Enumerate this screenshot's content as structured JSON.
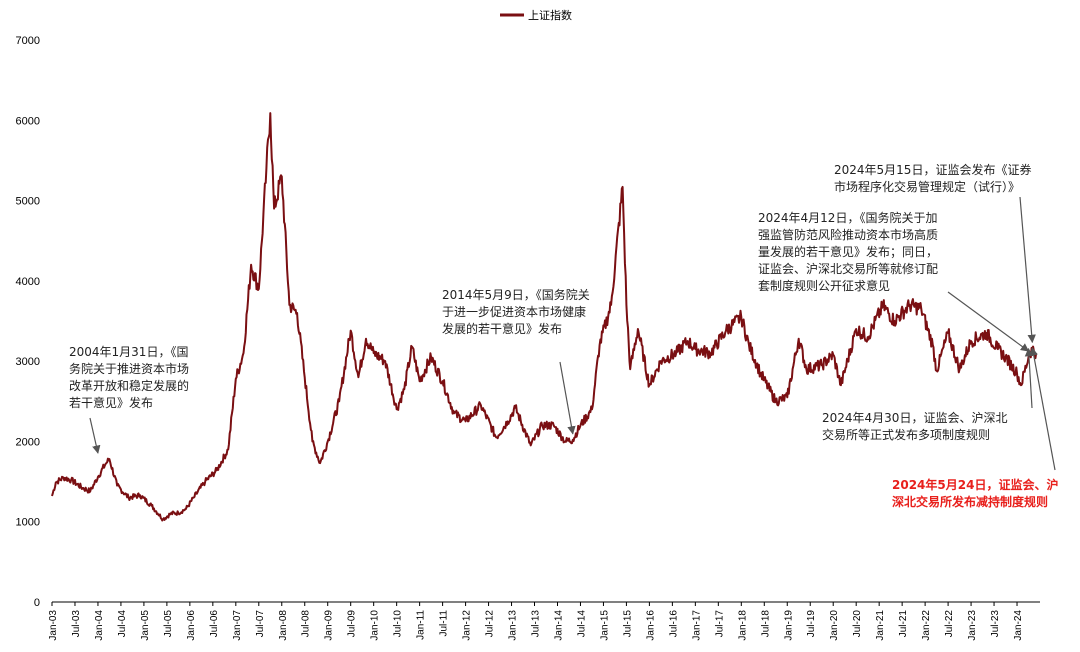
{
  "legend": {
    "label": "上证指数",
    "color": "#7a0f12"
  },
  "chart_data": {
    "type": "line",
    "series": [
      {
        "name": "上证指数",
        "color": "#7a0f12",
        "points": [
          [
            "2003-01",
            1320
          ],
          [
            "2003-02",
            1490
          ],
          [
            "2003-04",
            1550
          ],
          [
            "2003-06",
            1520
          ],
          [
            "2003-09",
            1420
          ],
          [
            "2003-11",
            1380
          ],
          [
            "2004-01",
            1560
          ],
          [
            "2004-03",
            1720
          ],
          [
            "2004-04",
            1780
          ],
          [
            "2004-06",
            1450
          ],
          [
            "2004-09",
            1300
          ],
          [
            "2004-12",
            1330
          ],
          [
            "2005-03",
            1200
          ],
          [
            "2005-06",
            1030
          ],
          [
            "2005-08",
            1100
          ],
          [
            "2005-10",
            1110
          ],
          [
            "2005-12",
            1160
          ],
          [
            "2006-02",
            1300
          ],
          [
            "2006-05",
            1500
          ],
          [
            "2006-08",
            1640
          ],
          [
            "2006-11",
            1900
          ],
          [
            "2007-01",
            2780
          ],
          [
            "2007-03",
            3100
          ],
          [
            "2007-05",
            4200
          ],
          [
            "2007-07",
            3900
          ],
          [
            "2007-09",
            5400
          ],
          [
            "2007-10",
            6090
          ],
          [
            "2007-11",
            4900
          ],
          [
            "2008-01",
            5300
          ],
          [
            "2008-03",
            3700
          ],
          [
            "2008-05",
            3600
          ],
          [
            "2008-07",
            2800
          ],
          [
            "2008-09",
            2000
          ],
          [
            "2008-11",
            1730
          ],
          [
            "2009-01",
            2000
          ],
          [
            "2009-04",
            2500
          ],
          [
            "2009-07",
            3380
          ],
          [
            "2009-09",
            2800
          ],
          [
            "2009-11",
            3280
          ],
          [
            "2010-01",
            3100
          ],
          [
            "2010-04",
            3000
          ],
          [
            "2010-07",
            2400
          ],
          [
            "2010-09",
            2650
          ],
          [
            "2010-11",
            3180
          ],
          [
            "2011-01",
            2750
          ],
          [
            "2011-04",
            3050
          ],
          [
            "2011-07",
            2750
          ],
          [
            "2011-10",
            2350
          ],
          [
            "2012-01",
            2250
          ],
          [
            "2012-05",
            2450
          ],
          [
            "2012-09",
            2050
          ],
          [
            "2012-12",
            2250
          ],
          [
            "2013-02",
            2420
          ],
          [
            "2013-06",
            1950
          ],
          [
            "2013-09",
            2200
          ],
          [
            "2013-12",
            2200
          ],
          [
            "2014-03",
            2000
          ],
          [
            "2014-05",
            2020
          ],
          [
            "2014-07",
            2200
          ],
          [
            "2014-10",
            2400
          ],
          [
            "2014-12",
            3200
          ],
          [
            "2015-03",
            3700
          ],
          [
            "2015-06",
            5170
          ],
          [
            "2015-07",
            3700
          ],
          [
            "2015-08",
            2900
          ],
          [
            "2015-10",
            3400
          ],
          [
            "2016-01",
            2700
          ],
          [
            "2016-04",
            3000
          ],
          [
            "2016-08",
            3100
          ],
          [
            "2016-11",
            3250
          ],
          [
            "2017-01",
            3150
          ],
          [
            "2017-05",
            3100
          ],
          [
            "2017-09",
            3380
          ],
          [
            "2018-01",
            3550
          ],
          [
            "2018-03",
            3200
          ],
          [
            "2018-06",
            2850
          ],
          [
            "2018-10",
            2500
          ],
          [
            "2019-01",
            2550
          ],
          [
            "2019-04",
            3280
          ],
          [
            "2019-06",
            2900
          ],
          [
            "2019-10",
            2950
          ],
          [
            "2020-01",
            3080
          ],
          [
            "2020-03",
            2700
          ],
          [
            "2020-07",
            3400
          ],
          [
            "2020-10",
            3300
          ],
          [
            "2021-02",
            3690
          ],
          [
            "2021-05",
            3500
          ],
          [
            "2021-09",
            3700
          ],
          [
            "2021-12",
            3650
          ],
          [
            "2022-03",
            3200
          ],
          [
            "2022-04",
            2880
          ],
          [
            "2022-07",
            3350
          ],
          [
            "2022-10",
            2900
          ],
          [
            "2023-01",
            3250
          ],
          [
            "2023-05",
            3350
          ],
          [
            "2023-08",
            3150
          ],
          [
            "2023-10",
            3050
          ],
          [
            "2024-01",
            2850
          ],
          [
            "2024-02",
            2700
          ],
          [
            "2024-04",
            3050
          ],
          [
            "2024-05",
            3160
          ],
          [
            "2024-06",
            3100
          ]
        ]
      }
    ],
    "ylim": [
      0,
      7000
    ],
    "yticks": [
      "0",
      "1000",
      "2000",
      "3000",
      "4000",
      "5000",
      "6000",
      "7000"
    ],
    "xticks": [
      "Jan-03",
      "Jul-03",
      "Jan-04",
      "Jul-04",
      "Jan-05",
      "Jul-05",
      "Jan-06",
      "Jul-06",
      "Jan-07",
      "Jul-07",
      "Jan-08",
      "Jul-08",
      "Jan-09",
      "Jul-09",
      "Jan-10",
      "Jul-10",
      "Jan-11",
      "Jul-11",
      "Jan-12",
      "Jul-12",
      "Jan-13",
      "Jul-13",
      "Jan-14",
      "Jul-14",
      "Jan-15",
      "Jul-15",
      "Jan-16",
      "Jul-16",
      "Jan-17",
      "Jul-17",
      "Jan-18",
      "Jul-18",
      "Jan-19",
      "Jul-19",
      "Jan-20",
      "Jul-20",
      "Jan-21",
      "Jul-21",
      "Jan-22",
      "Jul-22",
      "Jan-23",
      "Jul-23",
      "Jan-24"
    ],
    "grid": false,
    "legend_position": "top-center",
    "annotations": [
      {
        "text": "2004年1月31日，《国\n务院关于推进资本市场\n改革开放和稳定发展的\n若干意见》发布",
        "date": "2004-01",
        "value": 1780,
        "color": "#222222",
        "highlight": false
      },
      {
        "text": "2014年5月9日，《国务院关\n于进一步促进资本市场健康\n发展的若干意见》发布",
        "date": "2014-05",
        "value": 2020,
        "color": "#222222",
        "highlight": false
      },
      {
        "text": "2024年5月15日，证监会发布《证券\n市场程序化交易管理规定（试行）》",
        "date": "2024-05",
        "value": 3160,
        "color": "#222222",
        "highlight": false
      },
      {
        "text": "2024年4月12日，《国务院关于加\n强监管防范风险推动资本市场高质\n量发展的若干意见》发布；同日，\n证监会、沪深北交易所等就修订配\n套制度规则公开征求意见",
        "date": "2024-04",
        "value": 3050,
        "color": "#222222",
        "highlight": false
      },
      {
        "text": "2024年4月30日，证监会、沪深北\n交易所等正式发布多项制度规则",
        "date": "2024-04",
        "value": 3080,
        "color": "#222222",
        "highlight": false
      },
      {
        "text": "2024年5月24日，证监会、沪\n深北交易所发布减持制度规则",
        "date": "2024-05",
        "value": 3090,
        "color": "#e8201c",
        "highlight": true
      }
    ]
  }
}
